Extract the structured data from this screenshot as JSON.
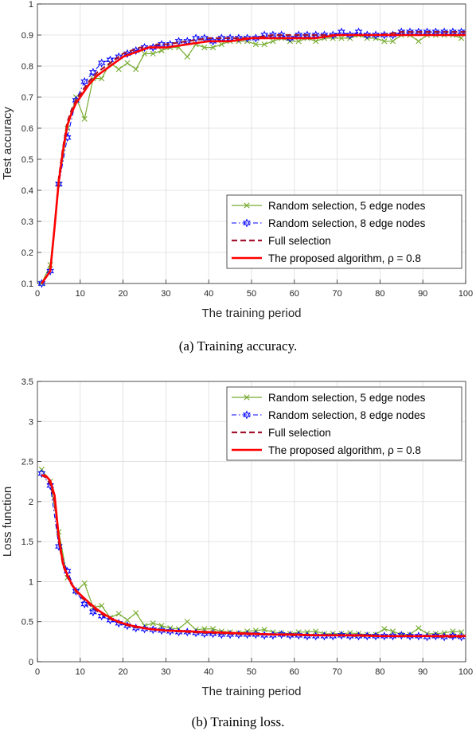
{
  "chart_data": [
    {
      "type": "line",
      "xlabel": "The training period",
      "ylabel": "Test accuracy",
      "xlim": [
        0,
        100
      ],
      "ylim": [
        0.1,
        1.0
      ],
      "xticks": [
        "0",
        "10",
        "20",
        "30",
        "40",
        "50",
        "60",
        "70",
        "80",
        "90",
        "100"
      ],
      "yticks": [
        "0.1",
        "0.2",
        "0.3",
        "0.4",
        "0.5",
        "0.6",
        "0.7",
        "0.8",
        "0.9",
        "1"
      ],
      "grid": true,
      "legend_position": "bottom-right",
      "caption": "(a)  Training accuracy.",
      "series": [
        {
          "name": "Random selection, 5 edge nodes",
          "color": "#77ac30",
          "dash": "",
          "marker": "x",
          "x": [
            1,
            3,
            5,
            7,
            9,
            11,
            13,
            15,
            17,
            19,
            21,
            23,
            25,
            27,
            29,
            31,
            33,
            35,
            37,
            39,
            41,
            43,
            45,
            47,
            49,
            51,
            53,
            55,
            57,
            59,
            61,
            63,
            65,
            67,
            69,
            71,
            73,
            75,
            77,
            79,
            81,
            83,
            85,
            87,
            89,
            91,
            93,
            95,
            97,
            99
          ],
          "y": [
            0.1,
            0.16,
            0.42,
            0.6,
            0.7,
            0.63,
            0.76,
            0.76,
            0.81,
            0.79,
            0.81,
            0.79,
            0.84,
            0.84,
            0.85,
            0.86,
            0.86,
            0.83,
            0.87,
            0.86,
            0.86,
            0.87,
            0.88,
            0.88,
            0.88,
            0.87,
            0.87,
            0.88,
            0.89,
            0.88,
            0.88,
            0.89,
            0.88,
            0.89,
            0.89,
            0.89,
            0.89,
            0.9,
            0.89,
            0.89,
            0.88,
            0.88,
            0.9,
            0.9,
            0.88,
            0.9,
            0.9,
            0.9,
            0.9,
            0.89
          ]
        },
        {
          "name": "Random selection, 8 edge nodes",
          "color": "#0000ff",
          "dash": "6,3,1.5,3",
          "marker": "star",
          "x": [
            1,
            3,
            5,
            7,
            9,
            11,
            13,
            15,
            17,
            19,
            21,
            23,
            25,
            27,
            29,
            31,
            33,
            35,
            37,
            39,
            41,
            43,
            45,
            47,
            49,
            51,
            53,
            55,
            57,
            59,
            61,
            63,
            65,
            67,
            69,
            71,
            73,
            75,
            77,
            79,
            81,
            83,
            85,
            87,
            89,
            91,
            93,
            95,
            97,
            99
          ],
          "y": [
            0.1,
            0.14,
            0.42,
            0.57,
            0.69,
            0.75,
            0.78,
            0.81,
            0.82,
            0.83,
            0.84,
            0.85,
            0.86,
            0.86,
            0.87,
            0.87,
            0.88,
            0.88,
            0.89,
            0.89,
            0.88,
            0.89,
            0.89,
            0.89,
            0.89,
            0.89,
            0.9,
            0.9,
            0.9,
            0.89,
            0.9,
            0.9,
            0.9,
            0.9,
            0.9,
            0.91,
            0.9,
            0.91,
            0.9,
            0.9,
            0.9,
            0.9,
            0.91,
            0.91,
            0.91,
            0.91,
            0.91,
            0.91,
            0.91,
            0.91
          ]
        },
        {
          "name": "Full selection",
          "color": "#a2142f",
          "dash": "7,4",
          "marker": "none",
          "x": [
            1,
            2,
            3,
            4,
            5,
            6,
            7,
            8,
            9,
            10,
            12,
            14,
            16,
            18,
            20,
            22,
            24,
            26,
            28,
            30,
            35,
            40,
            45,
            50,
            55,
            60,
            65,
            70,
            75,
            80,
            85,
            90,
            95,
            100
          ],
          "y": [
            0.1,
            0.12,
            0.14,
            0.28,
            0.44,
            0.54,
            0.62,
            0.66,
            0.69,
            0.71,
            0.75,
            0.78,
            0.8,
            0.82,
            0.84,
            0.85,
            0.86,
            0.86,
            0.87,
            0.87,
            0.88,
            0.89,
            0.89,
            0.89,
            0.9,
            0.9,
            0.9,
            0.9,
            0.9,
            0.9,
            0.91,
            0.91,
            0.91,
            0.91
          ]
        },
        {
          "name": "The proposed algorithm, ρ = 0.8",
          "color": "#ff0000",
          "dash": "",
          "marker": "none",
          "x": [
            1,
            2,
            3,
            4,
            5,
            6,
            7,
            8,
            9,
            10,
            12,
            14,
            16,
            18,
            20,
            22,
            24,
            26,
            28,
            30,
            35,
            40,
            45,
            50,
            55,
            60,
            65,
            70,
            75,
            80,
            85,
            90,
            95,
            100
          ],
          "y": [
            0.1,
            0.12,
            0.14,
            0.28,
            0.43,
            0.53,
            0.61,
            0.65,
            0.68,
            0.7,
            0.74,
            0.77,
            0.79,
            0.81,
            0.83,
            0.84,
            0.85,
            0.86,
            0.86,
            0.86,
            0.87,
            0.88,
            0.88,
            0.89,
            0.89,
            0.89,
            0.89,
            0.9,
            0.9,
            0.9,
            0.9,
            0.9,
            0.9,
            0.9
          ]
        }
      ]
    },
    {
      "type": "line",
      "xlabel": "The training period",
      "ylabel": "Loss function",
      "xlim": [
        0,
        100
      ],
      "ylim": [
        0,
        3.5
      ],
      "xticks": [
        "0",
        "10",
        "20",
        "30",
        "40",
        "50",
        "60",
        "70",
        "80",
        "90",
        "100"
      ],
      "yticks": [
        "0",
        "0.5",
        "1",
        "1.5",
        "2",
        "2.5",
        "3",
        "3.5"
      ],
      "grid": true,
      "legend_position": "top-right",
      "caption": "(b)  Training loss.",
      "series": [
        {
          "name": "Random selection, 5 edge nodes",
          "color": "#77ac30",
          "dash": "",
          "marker": "x",
          "x": [
            1,
            3,
            5,
            7,
            9,
            11,
            13,
            15,
            17,
            19,
            21,
            23,
            25,
            27,
            29,
            31,
            33,
            35,
            37,
            39,
            41,
            43,
            45,
            47,
            49,
            51,
            53,
            55,
            57,
            59,
            61,
            63,
            65,
            67,
            69,
            71,
            73,
            75,
            77,
            79,
            81,
            83,
            85,
            87,
            89,
            91,
            93,
            95,
            97,
            99
          ],
          "y": [
            2.4,
            2.25,
            1.62,
            1.05,
            0.88,
            0.98,
            0.68,
            0.7,
            0.55,
            0.6,
            0.52,
            0.61,
            0.45,
            0.48,
            0.45,
            0.42,
            0.41,
            0.5,
            0.4,
            0.41,
            0.41,
            0.38,
            0.37,
            0.36,
            0.38,
            0.39,
            0.4,
            0.37,
            0.36,
            0.35,
            0.37,
            0.37,
            0.38,
            0.35,
            0.35,
            0.35,
            0.36,
            0.35,
            0.34,
            0.34,
            0.41,
            0.38,
            0.34,
            0.34,
            0.42,
            0.35,
            0.35,
            0.36,
            0.38,
            0.37
          ]
        },
        {
          "name": "Random selection, 8 edge nodes",
          "color": "#0000ff",
          "dash": "6,3,1.5,3",
          "marker": "star",
          "x": [
            1,
            3,
            5,
            7,
            9,
            11,
            13,
            15,
            17,
            19,
            21,
            23,
            25,
            27,
            29,
            31,
            33,
            35,
            37,
            39,
            41,
            43,
            45,
            47,
            49,
            51,
            53,
            55,
            57,
            59,
            61,
            63,
            65,
            67,
            69,
            71,
            73,
            75,
            77,
            79,
            81,
            83,
            85,
            87,
            89,
            91,
            93,
            95,
            97,
            99
          ],
          "y": [
            2.35,
            2.2,
            1.44,
            1.13,
            0.88,
            0.72,
            0.62,
            0.57,
            0.52,
            0.48,
            0.45,
            0.42,
            0.41,
            0.4,
            0.39,
            0.38,
            0.37,
            0.37,
            0.36,
            0.35,
            0.35,
            0.34,
            0.34,
            0.34,
            0.34,
            0.34,
            0.33,
            0.33,
            0.34,
            0.33,
            0.33,
            0.32,
            0.32,
            0.32,
            0.32,
            0.33,
            0.32,
            0.32,
            0.32,
            0.32,
            0.32,
            0.32,
            0.33,
            0.32,
            0.32,
            0.31,
            0.32,
            0.31,
            0.32,
            0.31
          ]
        },
        {
          "name": "Full selection",
          "color": "#a2142f",
          "dash": "7,4",
          "marker": "none",
          "x": [
            1,
            2,
            3,
            4,
            5,
            6,
            7,
            8,
            9,
            10,
            12,
            14,
            16,
            18,
            20,
            22,
            24,
            26,
            28,
            30,
            35,
            40,
            45,
            50,
            55,
            60,
            65,
            70,
            75,
            80,
            85,
            90,
            95,
            100
          ],
          "y": [
            2.33,
            2.3,
            2.22,
            2.0,
            1.5,
            1.2,
            1.06,
            0.96,
            0.88,
            0.82,
            0.72,
            0.63,
            0.56,
            0.51,
            0.47,
            0.44,
            0.42,
            0.41,
            0.4,
            0.39,
            0.37,
            0.36,
            0.35,
            0.34,
            0.34,
            0.33,
            0.33,
            0.33,
            0.32,
            0.32,
            0.32,
            0.32,
            0.31,
            0.31
          ]
        },
        {
          "name": "The proposed algorithm, ρ = 0.8",
          "color": "#ff0000",
          "dash": "",
          "marker": "none",
          "x": [
            1,
            2,
            3,
            4,
            5,
            6,
            7,
            8,
            9,
            10,
            12,
            14,
            16,
            18,
            20,
            22,
            24,
            26,
            28,
            30,
            35,
            40,
            45,
            50,
            55,
            60,
            65,
            70,
            75,
            80,
            85,
            90,
            95,
            100
          ],
          "y": [
            2.33,
            2.32,
            2.26,
            2.08,
            1.55,
            1.22,
            1.08,
            0.97,
            0.89,
            0.84,
            0.74,
            0.65,
            0.58,
            0.52,
            0.48,
            0.45,
            0.43,
            0.41,
            0.4,
            0.39,
            0.38,
            0.37,
            0.36,
            0.35,
            0.34,
            0.34,
            0.33,
            0.33,
            0.33,
            0.32,
            0.32,
            0.32,
            0.32,
            0.32
          ]
        }
      ]
    }
  ]
}
